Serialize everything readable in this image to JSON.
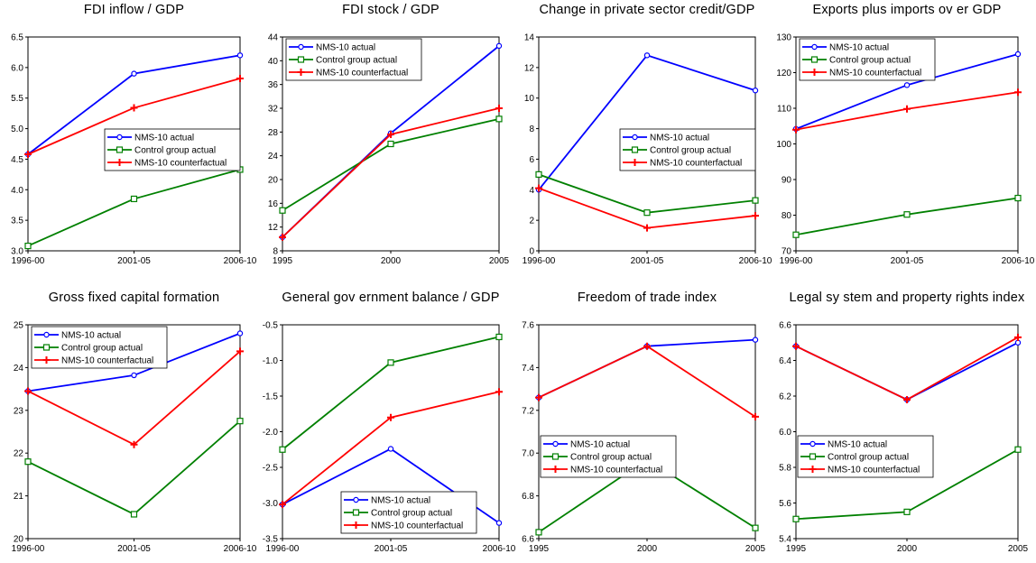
{
  "chart_data": [
    {
      "type": "line",
      "title": "FDI inflow / GDP",
      "categories": [
        "1996-00",
        "2001-05",
        "2006-10"
      ],
      "ylim": [
        3.0,
        6.5
      ],
      "yticks": [
        "3.0",
        "3.5",
        "4.0",
        "4.5",
        "5.0",
        "5.5",
        "6.0",
        "6.5"
      ],
      "legend_position": "center-right",
      "series": [
        {
          "name": "NMS-10 actual",
          "values": [
            4.58,
            5.9,
            6.2
          ],
          "color": "#0000ff",
          "marker": "circle"
        },
        {
          "name": "Control group actual",
          "values": [
            3.08,
            3.85,
            4.33
          ],
          "color": "#008000",
          "marker": "square"
        },
        {
          "name": "NMS-10 counterfactual",
          "values": [
            4.58,
            5.34,
            5.82
          ],
          "color": "#ff0000",
          "marker": "plus"
        }
      ]
    },
    {
      "type": "line",
      "title": "FDI stock / GDP",
      "categories": [
        "1995",
        "2000",
        "2005"
      ],
      "ylim": [
        8,
        44
      ],
      "yticks": [
        "8",
        "12",
        "16",
        "20",
        "24",
        "28",
        "32",
        "36",
        "40",
        "44"
      ],
      "legend_position": "top-left",
      "series": [
        {
          "name": "NMS-10 actual",
          "values": [
            10.3,
            27.8,
            42.5
          ],
          "color": "#0000ff",
          "marker": "circle"
        },
        {
          "name": "Control group actual",
          "values": [
            14.8,
            26.0,
            30.2
          ],
          "color": "#008000",
          "marker": "square"
        },
        {
          "name": "NMS-10 counterfactual",
          "values": [
            10.3,
            27.6,
            32.0
          ],
          "color": "#ff0000",
          "marker": "plus"
        }
      ]
    },
    {
      "type": "line",
      "title": "Change in private sector credit/GDP",
      "categories": [
        "1996-00",
        "2001-05",
        "2006-10"
      ],
      "ylim": [
        0,
        14
      ],
      "yticks": [
        "0",
        "2",
        "4",
        "6",
        "8",
        "10",
        "12",
        "14"
      ],
      "legend_position": "center-right",
      "series": [
        {
          "name": "NMS-10 actual",
          "values": [
            4.0,
            12.8,
            10.5
          ],
          "color": "#0000ff",
          "marker": "circle"
        },
        {
          "name": "Control group actual",
          "values": [
            5.0,
            2.5,
            3.3
          ],
          "color": "#008000",
          "marker": "square"
        },
        {
          "name": "NMS-10 counterfactual",
          "values": [
            4.1,
            1.5,
            2.3
          ],
          "color": "#ff0000",
          "marker": "plus"
        }
      ]
    },
    {
      "type": "line",
      "title": "Exports plus imports ov er GDP",
      "categories": [
        "1996-00",
        "2001-05",
        "2006-10"
      ],
      "ylim": [
        70,
        130
      ],
      "yticks": [
        "70",
        "80",
        "90",
        "100",
        "110",
        "120",
        "130"
      ],
      "legend_position": "top-left",
      "series": [
        {
          "name": "NMS-10 actual",
          "values": [
            104.2,
            116.5,
            125.2
          ],
          "color": "#0000ff",
          "marker": "circle"
        },
        {
          "name": "Control group actual",
          "values": [
            74.5,
            80.2,
            84.8
          ],
          "color": "#008000",
          "marker": "square"
        },
        {
          "name": "NMS-10 counterfactual",
          "values": [
            104.0,
            109.8,
            114.5
          ],
          "color": "#ff0000",
          "marker": "plus"
        }
      ]
    },
    {
      "type": "line",
      "title": "Gross fixed capital formation",
      "categories": [
        "1996-00",
        "2001-05",
        "2006-10"
      ],
      "ylim": [
        20,
        25
      ],
      "yticks": [
        "20",
        "21",
        "22",
        "23",
        "24",
        "25"
      ],
      "legend_position": "top-left",
      "series": [
        {
          "name": "NMS-10 actual",
          "values": [
            23.45,
            23.82,
            24.8
          ],
          "color": "#0000ff",
          "marker": "circle"
        },
        {
          "name": "Control group actual",
          "values": [
            21.8,
            20.57,
            22.75
          ],
          "color": "#008000",
          "marker": "square"
        },
        {
          "name": "NMS-10 counterfactual",
          "values": [
            23.45,
            22.2,
            24.38
          ],
          "color": "#ff0000",
          "marker": "plus"
        }
      ]
    },
    {
      "type": "line",
      "title": "General gov ernment balance / GDP",
      "categories": [
        "1996-00",
        "2001-05",
        "2006-10"
      ],
      "ylim": [
        -3.5,
        -0.5
      ],
      "yticks": [
        "-3.5",
        "-3.0",
        "-2.5",
        "-2.0",
        "-1.5",
        "-1.0",
        "-0.5"
      ],
      "legend_position": "bottom-center",
      "series": [
        {
          "name": "NMS-10 actual",
          "values": [
            -3.02,
            -2.24,
            -3.28
          ],
          "color": "#0000ff",
          "marker": "circle"
        },
        {
          "name": "Control group actual",
          "values": [
            -2.25,
            -1.03,
            -0.67
          ],
          "color": "#008000",
          "marker": "square"
        },
        {
          "name": "NMS-10 counterfactual",
          "values": [
            -3.02,
            -1.8,
            -1.44
          ],
          "color": "#ff0000",
          "marker": "plus"
        }
      ]
    },
    {
      "type": "line",
      "title": "Freedom of trade index",
      "categories": [
        "1995",
        "2000",
        "2005"
      ],
      "ylim": [
        6.6,
        7.6
      ],
      "yticks": [
        "6.6",
        "6.8",
        "7.0",
        "7.2",
        "7.4",
        "7.6"
      ],
      "legend_position": "center-left",
      "series": [
        {
          "name": "NMS-10 actual",
          "values": [
            7.26,
            7.5,
            7.53
          ],
          "color": "#0000ff",
          "marker": "circle"
        },
        {
          "name": "Control group actual",
          "values": [
            6.63,
            6.97,
            6.65
          ],
          "color": "#008000",
          "marker": "square"
        },
        {
          "name": "NMS-10 counterfactual",
          "values": [
            7.26,
            7.5,
            7.17
          ],
          "color": "#ff0000",
          "marker": "plus"
        }
      ]
    },
    {
      "type": "line",
      "title": "Legal sy stem and property rights index",
      "categories": [
        "1995",
        "2000",
        "2005"
      ],
      "ylim": [
        5.4,
        6.6
      ],
      "yticks": [
        "5.4",
        "5.6",
        "5.8",
        "6.0",
        "6.2",
        "6.4",
        "6.6"
      ],
      "legend_position": "center-left",
      "series": [
        {
          "name": "NMS-10 actual",
          "values": [
            6.48,
            6.18,
            6.5
          ],
          "color": "#0000ff",
          "marker": "circle"
        },
        {
          "name": "Control group actual",
          "values": [
            5.51,
            5.55,
            5.9
          ],
          "color": "#008000",
          "marker": "square"
        },
        {
          "name": "NMS-10 counterfactual",
          "values": [
            6.48,
            6.18,
            6.53
          ],
          "color": "#ff0000",
          "marker": "plus"
        }
      ]
    }
  ]
}
